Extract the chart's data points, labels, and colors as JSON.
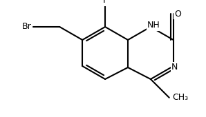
{
  "bg": "#ffffff",
  "lw": 1.5,
  "fs": 9.0,
  "BL": 38.0,
  "C8a": [
    185.0,
    112.0
  ],
  "C4a": [
    185.0,
    72.0
  ],
  "xlim": [
    0,
    298
  ],
  "ylim": [
    0,
    170
  ]
}
